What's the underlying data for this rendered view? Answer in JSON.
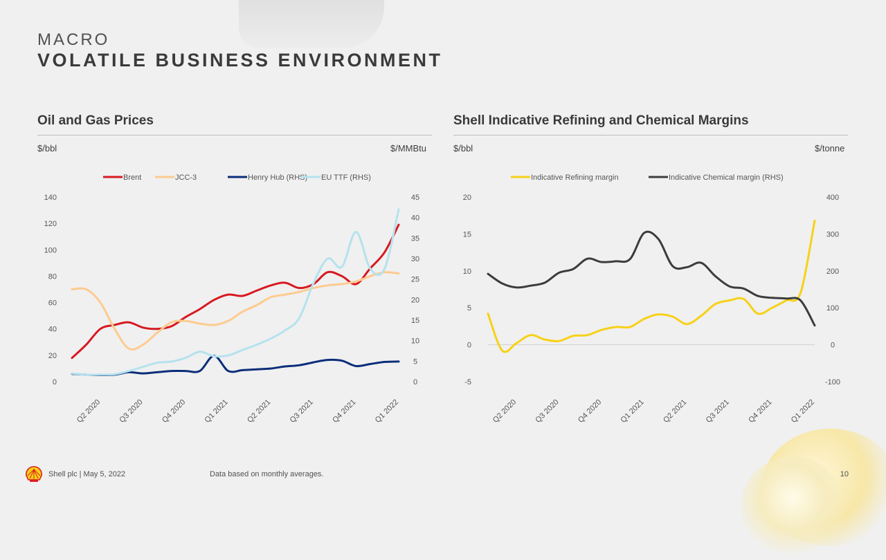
{
  "header": {
    "kicker": "MACRO",
    "title": "VOLATILE BUSINESS ENVIRONMENT"
  },
  "footer": {
    "company_date": "Shell plc | May 5, 2022",
    "note": "Data based on monthly averages.",
    "page": "10",
    "logo_icon": "shell-pecten-icon"
  },
  "chart_data": [
    {
      "type": "line",
      "title": "Oil and Gas Prices",
      "ylabel_left": "$/bbl",
      "ylabel_right": "$/MMBtu",
      "ylim_left": [
        0,
        140
      ],
      "yticks_left": [
        0,
        20,
        40,
        60,
        80,
        100,
        120,
        140
      ],
      "ylim_right": [
        0,
        45
      ],
      "yticks_right": [
        0,
        5,
        10,
        15,
        20,
        25,
        30,
        35,
        40,
        45
      ],
      "x_range": [
        0,
        23
      ],
      "xticks": [
        {
          "label": "Q2 2020",
          "x": 2
        },
        {
          "label": "Q3 2020",
          "x": 5
        },
        {
          "label": "Q4 2020",
          "x": 8
        },
        {
          "label": "Q1 2021",
          "x": 11
        },
        {
          "label": "Q2 2021",
          "x": 14
        },
        {
          "label": "Q3 2021",
          "x": 17
        },
        {
          "label": "Q4 2021",
          "x": 20
        },
        {
          "label": "Q1 2022",
          "x": 23
        }
      ],
      "series": [
        {
          "name": "Brent",
          "axis": "left",
          "color": "#d71920",
          "values": [
            18,
            28,
            40,
            43,
            45,
            41,
            40,
            42,
            49,
            55,
            62,
            66,
            65,
            69,
            73,
            75,
            71,
            74,
            83,
            80,
            74,
            86,
            98,
            119
          ]
        },
        {
          "name": "JCC-3",
          "axis": "left",
          "color": "#fdcb8f",
          "values": [
            70,
            70,
            60,
            40,
            25,
            28,
            37,
            45,
            46,
            44,
            43,
            46,
            53,
            58,
            64,
            66,
            68,
            71,
            73,
            74,
            76,
            80,
            83,
            82
          ]
        },
        {
          "name": "Henry Hub (RHS)",
          "axis": "right",
          "color": "#0a2d7a",
          "values": [
            1.9,
            1.7,
            1.6,
            1.7,
            2.3,
            2.0,
            2.3,
            2.6,
            2.6,
            2.6,
            6.3,
            2.6,
            2.8,
            3.0,
            3.2,
            3.7,
            4.0,
            4.7,
            5.3,
            5.1,
            3.8,
            4.3,
            4.8,
            4.9
          ]
        },
        {
          "name": "EU TTF (RHS)",
          "axis": "right",
          "color": "#b5e2ee",
          "values": [
            2.0,
            1.7,
            1.7,
            1.8,
            2.6,
            3.6,
            4.6,
            4.9,
            5.8,
            7.3,
            6.2,
            6.4,
            7.7,
            9.0,
            10.5,
            12.5,
            15.5,
            24.0,
            30.0,
            28.0,
            36.5,
            27.5,
            27.5,
            42.0
          ]
        }
      ]
    },
    {
      "type": "line",
      "title": "Shell Indicative Refining and Chemical Margins",
      "ylabel_left": "$/bbl",
      "ylabel_right": "$/tonne",
      "ylim_left": [
        -5,
        20
      ],
      "yticks_left": [
        -5,
        0,
        5,
        10,
        15,
        20
      ],
      "ylim_right": [
        -100,
        400
      ],
      "yticks_right": [
        -100,
        0,
        100,
        200,
        300,
        400
      ],
      "x_range": [
        0,
        23
      ],
      "xticks": [
        {
          "label": "Q2 2020",
          "x": 2
        },
        {
          "label": "Q3 2020",
          "x": 5
        },
        {
          "label": "Q4 2020",
          "x": 8
        },
        {
          "label": "Q1 2021",
          "x": 11
        },
        {
          "label": "Q2 2021",
          "x": 14
        },
        {
          "label": "Q3 2021",
          "x": 17
        },
        {
          "label": "Q4 2021",
          "x": 20
        },
        {
          "label": "Q1 2022",
          "x": 23
        }
      ],
      "series": [
        {
          "name": "Indicative Refining margin",
          "axis": "left",
          "color": "#f7d117",
          "values": [
            4.2,
            -0.8,
            0.2,
            1.3,
            0.7,
            0.5,
            1.2,
            1.3,
            2.0,
            2.4,
            2.4,
            3.5,
            4.1,
            3.8,
            2.8,
            3.9,
            5.5,
            6.0,
            6.2,
            4.2,
            5.0,
            6.0,
            7.0,
            16.8
          ]
        },
        {
          "name": "Indicative Chemical margin (RHS)",
          "axis": "right",
          "color": "#3c3c3c",
          "values": [
            192,
            166,
            155,
            160,
            168,
            195,
            205,
            233,
            224,
            226,
            232,
            303,
            286,
            213,
            210,
            222,
            186,
            158,
            152,
            132,
            127,
            125,
            120,
            52
          ]
        }
      ]
    }
  ]
}
